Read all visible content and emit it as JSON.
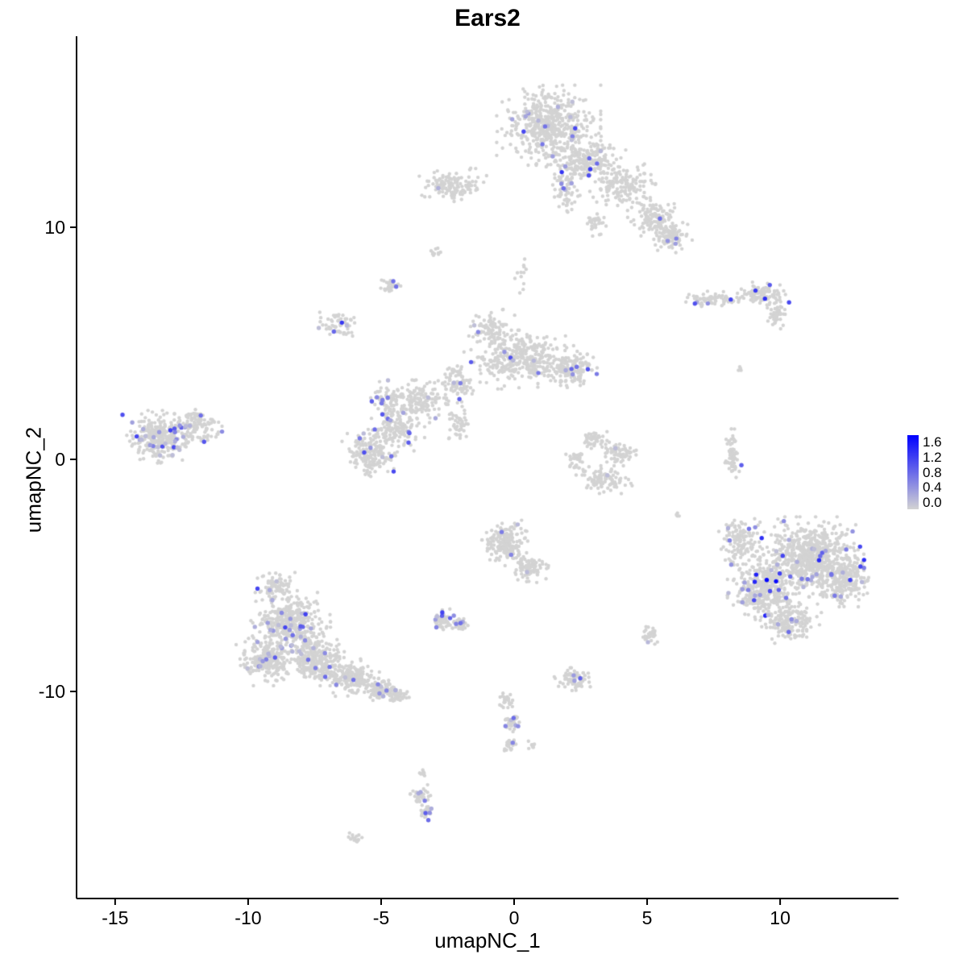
{
  "chart_data": {
    "type": "scatter",
    "title": "Ears2",
    "xlabel": "umapNC_1",
    "ylabel": "umapNC_2",
    "xlim": [
      -16.45,
      14.45
    ],
    "ylim": [
      -18.92,
      18.23
    ],
    "x_ticks": [
      -15,
      -10,
      -5,
      0,
      5,
      10
    ],
    "y_ticks": [
      -10,
      0,
      10
    ],
    "grid": false,
    "legend": {
      "position": "right",
      "labels": [
        "1.6",
        "1.2",
        "0.8",
        "0.4",
        "0.0"
      ],
      "vmin": 0.0,
      "vmax": 1.6,
      "low_color": "#d3d3d3",
      "high_color": "#0000ff"
    },
    "point_color_low": "#d3d3d3",
    "point_color_high": "#0000ff",
    "seed": 12345,
    "clusters": [
      {
        "cx": 1.3,
        "cy": 14.4,
        "rx": 1.7,
        "ry": 1.5,
        "n": 520,
        "ef": 0.025,
        "em": 1.1
      },
      {
        "cx": 2.7,
        "cy": 12.9,
        "rx": 1.3,
        "ry": 1.0,
        "n": 220,
        "ef": 0.03,
        "em": 1.2
      },
      {
        "cx": 4.1,
        "cy": 11.8,
        "rx": 1.2,
        "ry": 0.9,
        "n": 150,
        "ef": 0.02,
        "em": 0.9
      },
      {
        "cx": 5.3,
        "cy": 10.4,
        "rx": 0.9,
        "ry": 0.8,
        "n": 130,
        "ef": 0.03,
        "em": 1.0
      },
      {
        "cx": 5.9,
        "cy": 9.6,
        "rx": 0.7,
        "ry": 0.6,
        "n": 90,
        "ef": 0.05,
        "em": 1.0
      },
      {
        "cx": 1.9,
        "cy": 11.6,
        "rx": 0.5,
        "ry": 1.1,
        "n": 70,
        "ef": 0.04,
        "em": 1.3
      },
      {
        "cx": 3.1,
        "cy": 10.2,
        "rx": 0.5,
        "ry": 0.7,
        "n": 30,
        "ef": 0.0,
        "em": 0.0
      },
      {
        "cx": 0.3,
        "cy": 7.8,
        "rx": 0.3,
        "ry": 1.2,
        "n": 12,
        "ef": 0.0,
        "em": 0.0
      },
      {
        "cx": -2.3,
        "cy": 11.8,
        "rx": 1.1,
        "ry": 0.65,
        "n": 130,
        "ef": 0.02,
        "em": 1.1
      },
      {
        "cx": -2.9,
        "cy": 8.9,
        "rx": 0.25,
        "ry": 0.25,
        "n": 10,
        "ef": 0.1,
        "em": 0.8
      },
      {
        "cx": 7.4,
        "cy": 6.9,
        "rx": 0.9,
        "ry": 0.3,
        "n": 70,
        "ef": 0.06,
        "em": 1.2
      },
      {
        "cx": 9.3,
        "cy": 7.1,
        "rx": 0.9,
        "ry": 0.5,
        "n": 110,
        "ef": 0.05,
        "em": 1.3
      },
      {
        "cx": 9.9,
        "cy": 6.2,
        "rx": 0.4,
        "ry": 0.5,
        "n": 40,
        "ef": 0.0,
        "em": 0.0
      },
      {
        "cx": 8.4,
        "cy": 3.9,
        "rx": 0.15,
        "ry": 0.15,
        "n": 4,
        "ef": 0.0,
        "em": 0.0
      },
      {
        "cx": 0.3,
        "cy": 4.3,
        "rx": 1.9,
        "ry": 1.1,
        "n": 380,
        "ef": 0.02,
        "em": 1.0
      },
      {
        "cx": -0.9,
        "cy": 5.6,
        "rx": 0.8,
        "ry": 0.8,
        "n": 90,
        "ef": 0.01,
        "em": 0.8
      },
      {
        "cx": 2.2,
        "cy": 3.9,
        "rx": 0.8,
        "ry": 0.7,
        "n": 130,
        "ef": 0.03,
        "em": 1.0
      },
      {
        "cx": -2.2,
        "cy": 3.3,
        "rx": 0.8,
        "ry": 0.8,
        "n": 90,
        "ef": 0.03,
        "em": 1.0
      },
      {
        "cx": -3.5,
        "cy": 2.5,
        "rx": 0.9,
        "ry": 0.8,
        "n": 130,
        "ef": 0.03,
        "em": 1.0
      },
      {
        "cx": -4.4,
        "cy": 1.4,
        "rx": 0.9,
        "ry": 0.9,
        "n": 150,
        "ef": 0.04,
        "em": 1.2
      },
      {
        "cx": -5.4,
        "cy": 0.3,
        "rx": 1.0,
        "ry": 0.9,
        "n": 170,
        "ef": 0.05,
        "em": 1.1
      },
      {
        "cx": -4.7,
        "cy": 2.6,
        "rx": 0.6,
        "ry": 0.7,
        "n": 80,
        "ef": 0.04,
        "em": 1.0
      },
      {
        "cx": -6.6,
        "cy": 5.8,
        "rx": 0.75,
        "ry": 0.55,
        "n": 60,
        "ef": 0.13,
        "em": 1.2
      },
      {
        "cx": -4.7,
        "cy": 7.5,
        "rx": 0.4,
        "ry": 0.35,
        "n": 30,
        "ef": 0.08,
        "em": 1.0
      },
      {
        "cx": -2.1,
        "cy": 1.5,
        "rx": 0.5,
        "ry": 0.8,
        "n": 45,
        "ef": 0.02,
        "em": 0.6
      },
      {
        "cx": -13.4,
        "cy": 0.9,
        "rx": 1.15,
        "ry": 1.05,
        "n": 300,
        "ef": 0.08,
        "em": 1.2
      },
      {
        "cx": -11.9,
        "cy": 1.5,
        "rx": 0.8,
        "ry": 0.7,
        "n": 110,
        "ef": 0.05,
        "em": 1.0
      },
      {
        "cx": 3.0,
        "cy": 0.9,
        "rx": 0.5,
        "ry": 0.4,
        "n": 50,
        "ef": 0.0,
        "em": 0.0
      },
      {
        "cx": 3.9,
        "cy": 0.3,
        "rx": 0.6,
        "ry": 0.5,
        "n": 70,
        "ef": 0.01,
        "em": 0.5
      },
      {
        "cx": 3.4,
        "cy": -0.9,
        "rx": 0.9,
        "ry": 0.5,
        "n": 100,
        "ef": 0.01,
        "em": 0.5
      },
      {
        "cx": 2.4,
        "cy": -0.1,
        "rx": 0.4,
        "ry": 0.5,
        "n": 40,
        "ef": 0.0,
        "em": 0.0
      },
      {
        "cx": 8.2,
        "cy": 0.2,
        "rx": 0.3,
        "ry": 1.0,
        "n": 60,
        "ef": 0.03,
        "em": 1.2
      },
      {
        "cx": 11.2,
        "cy": -4.2,
        "rx": 1.7,
        "ry": 1.5,
        "n": 720,
        "ef": 0.04,
        "em": 1.4
      },
      {
        "cx": 9.4,
        "cy": -5.6,
        "rx": 1.2,
        "ry": 1.4,
        "n": 360,
        "ef": 0.04,
        "em": 1.6
      },
      {
        "cx": 12.5,
        "cy": -5.2,
        "rx": 0.9,
        "ry": 1.0,
        "n": 200,
        "ef": 0.03,
        "em": 1.2
      },
      {
        "cx": 10.4,
        "cy": -7.0,
        "rx": 1.0,
        "ry": 0.8,
        "n": 180,
        "ef": 0.03,
        "em": 1.0
      },
      {
        "cx": 8.5,
        "cy": -3.5,
        "rx": 0.7,
        "ry": 1.0,
        "n": 130,
        "ef": 0.04,
        "em": 1.1
      },
      {
        "cx": -8.4,
        "cy": -7.0,
        "rx": 1.3,
        "ry": 1.1,
        "n": 360,
        "ef": 0.05,
        "em": 1.1
      },
      {
        "cx": -9.3,
        "cy": -8.6,
        "rx": 1.0,
        "ry": 1.0,
        "n": 260,
        "ef": 0.05,
        "em": 1.1
      },
      {
        "cx": -7.4,
        "cy": -8.6,
        "rx": 1.1,
        "ry": 1.0,
        "n": 300,
        "ef": 0.04,
        "em": 1.0
      },
      {
        "cx": -6.1,
        "cy": -9.4,
        "rx": 0.9,
        "ry": 0.7,
        "n": 180,
        "ef": 0.03,
        "em": 0.9
      },
      {
        "cx": -5.0,
        "cy": -9.9,
        "rx": 0.7,
        "ry": 0.5,
        "n": 100,
        "ef": 0.02,
        "em": 0.8
      },
      {
        "cx": -4.4,
        "cy": -10.2,
        "rx": 0.45,
        "ry": 0.35,
        "n": 50,
        "ef": 0.02,
        "em": 0.8
      },
      {
        "cx": -8.9,
        "cy": -5.5,
        "rx": 0.65,
        "ry": 0.55,
        "n": 90,
        "ef": 0.06,
        "em": 1.1
      },
      {
        "cx": -0.3,
        "cy": -3.6,
        "rx": 0.85,
        "ry": 0.85,
        "n": 190,
        "ef": 0.02,
        "em": 0.9
      },
      {
        "cx": 0.6,
        "cy": -4.7,
        "rx": 0.6,
        "ry": 0.6,
        "n": 90,
        "ef": 0.01,
        "em": 0.6
      },
      {
        "cx": -2.7,
        "cy": -6.9,
        "rx": 0.4,
        "ry": 0.4,
        "n": 55,
        "ef": 0.12,
        "em": 1.1
      },
      {
        "cx": -2.0,
        "cy": -7.1,
        "rx": 0.35,
        "ry": 0.3,
        "n": 40,
        "ef": 0.08,
        "em": 0.9
      },
      {
        "cx": 2.2,
        "cy": -9.5,
        "rx": 0.6,
        "ry": 0.45,
        "n": 75,
        "ef": 0.04,
        "em": 1.0
      },
      {
        "cx": 5.1,
        "cy": -7.5,
        "rx": 0.3,
        "ry": 0.4,
        "n": 30,
        "ef": 0.08,
        "em": 0.7
      },
      {
        "cx": -0.3,
        "cy": -10.4,
        "rx": 0.3,
        "ry": 0.3,
        "n": 25,
        "ef": 0.0,
        "em": 0.0
      },
      {
        "cx": -0.1,
        "cy": -11.3,
        "rx": 0.28,
        "ry": 0.45,
        "n": 35,
        "ef": 0.08,
        "em": 1.0
      },
      {
        "cx": -0.2,
        "cy": -12.3,
        "rx": 0.3,
        "ry": 0.3,
        "n": 25,
        "ef": 0.04,
        "em": 0.8
      },
      {
        "cx": 0.7,
        "cy": -12.3,
        "rx": 0.2,
        "ry": 0.2,
        "n": 10,
        "ef": 0.0,
        "em": 0.0
      },
      {
        "cx": -3.5,
        "cy": -14.5,
        "rx": 0.35,
        "ry": 0.45,
        "n": 45,
        "ef": 0.1,
        "em": 1.1
      },
      {
        "cx": -3.3,
        "cy": -15.2,
        "rx": 0.28,
        "ry": 0.3,
        "n": 28,
        "ef": 0.08,
        "em": 0.9
      },
      {
        "cx": -3.4,
        "cy": -13.5,
        "rx": 0.15,
        "ry": 0.2,
        "n": 8,
        "ef": 0.0,
        "em": 0.0
      },
      {
        "cx": -6.0,
        "cy": -16.3,
        "rx": 0.35,
        "ry": 0.18,
        "n": 15,
        "ef": 0.0,
        "em": 0.0
      },
      {
        "cx": 6.2,
        "cy": -2.4,
        "rx": 0.15,
        "ry": 0.15,
        "n": 5,
        "ef": 0.0,
        "em": 0.0
      }
    ]
  }
}
